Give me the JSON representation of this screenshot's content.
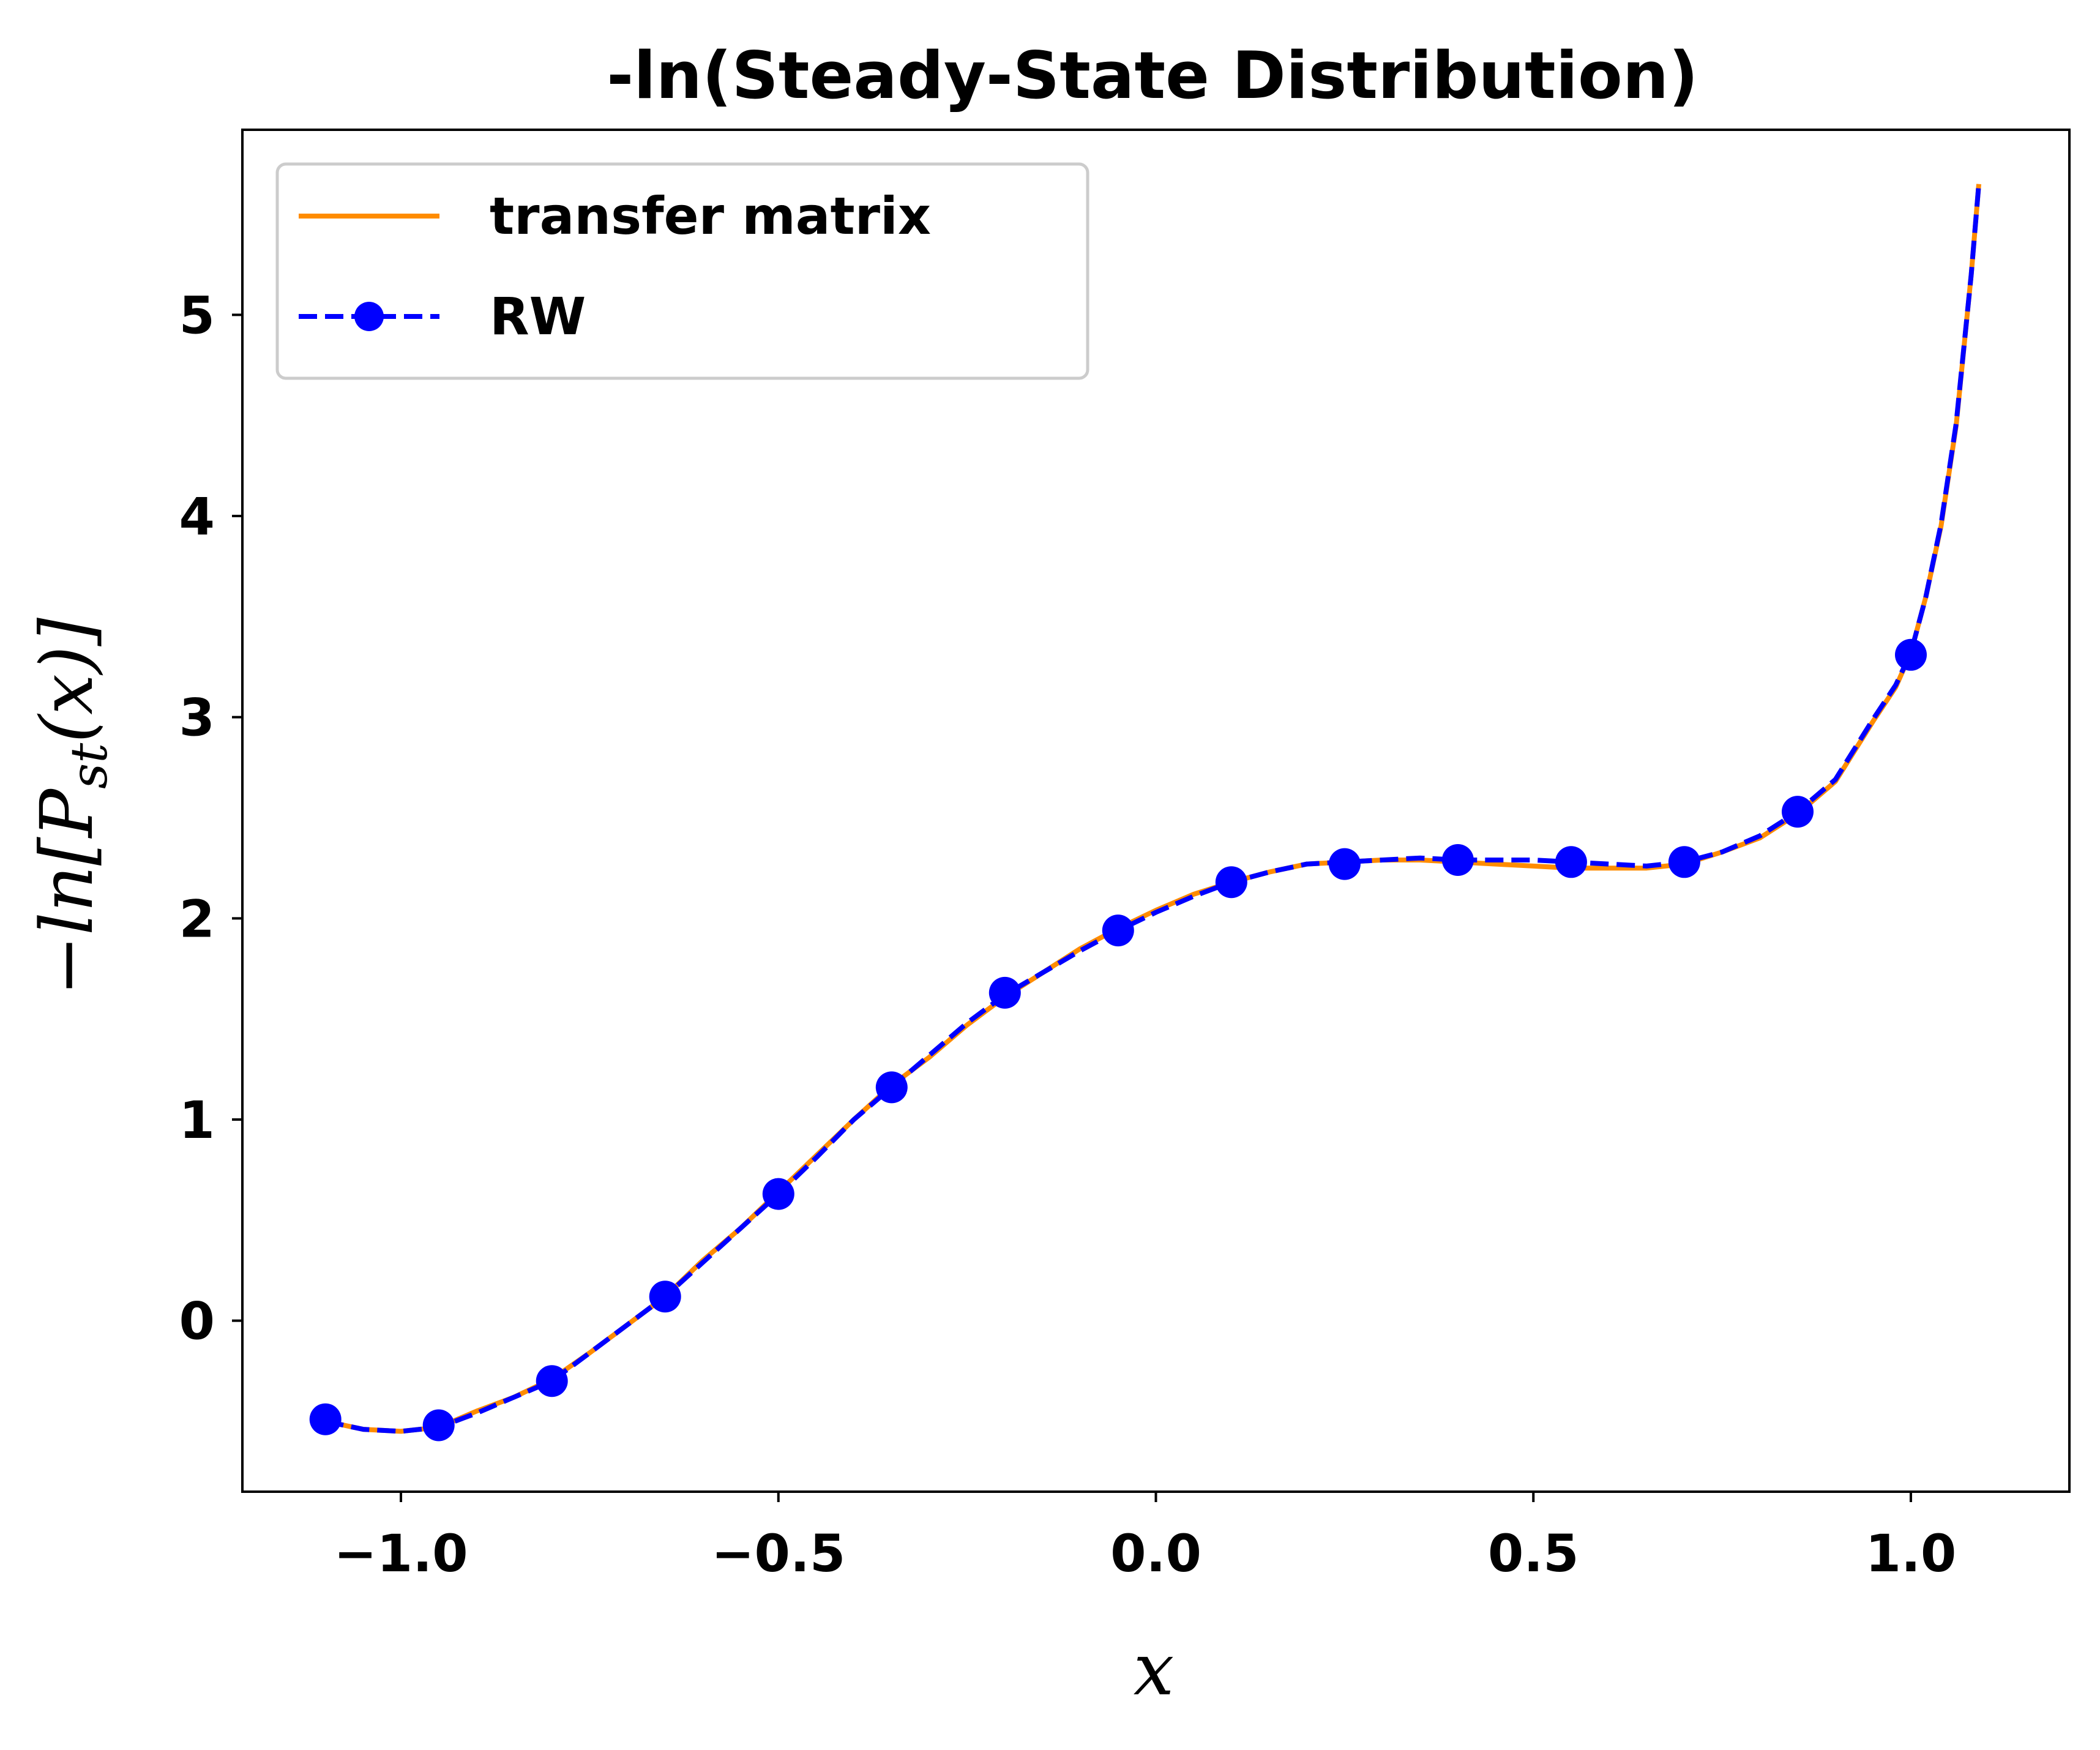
{
  "chart_data": {
    "type": "line",
    "title": "-ln(Steady-State Distribution)",
    "xlabel": "x",
    "ylabel": "−ln[P_st(x)]",
    "ylabel_parts": {
      "prefix": "−ln[",
      "var": "P",
      "sub": "st",
      "suffix": "(x)]"
    },
    "xlim": [
      -1.21,
      1.21
    ],
    "ylim": [
      -0.85,
      5.92
    ],
    "xticks": [
      -1.0,
      -0.5,
      0.0,
      0.5,
      1.0
    ],
    "xtick_labels": [
      "−1.0",
      "−0.5",
      "0.0",
      "0.5",
      "1.0"
    ],
    "yticks": [
      0,
      1,
      2,
      3,
      4,
      5
    ],
    "ytick_labels": [
      "0",
      "1",
      "2",
      "3",
      "4",
      "5"
    ],
    "grid": false,
    "legend_position": "upper-left",
    "series": [
      {
        "name": "transfer matrix",
        "color": "#ff8c00",
        "style": "solid",
        "x": [
          -1.1,
          -1.05,
          -1.0,
          -0.95,
          -0.9,
          -0.85,
          -0.8,
          -0.75,
          -0.7,
          -0.65,
          -0.6,
          -0.55,
          -0.5,
          -0.45,
          -0.4,
          -0.35,
          -0.3,
          -0.25,
          -0.2,
          -0.15,
          -0.1,
          -0.05,
          0.0,
          0.05,
          0.1,
          0.15,
          0.2,
          0.25,
          0.3,
          0.35,
          0.4,
          0.45,
          0.5,
          0.55,
          0.6,
          0.65,
          0.7,
          0.75,
          0.8,
          0.85,
          0.9,
          0.95,
          0.98,
          1.0,
          1.02,
          1.04,
          1.06,
          1.08,
          1.09
        ],
        "y": [
          -0.5,
          -0.54,
          -0.55,
          -0.53,
          -0.45,
          -0.38,
          -0.29,
          -0.16,
          -0.02,
          0.12,
          0.3,
          0.46,
          0.64,
          0.82,
          1.0,
          1.17,
          1.31,
          1.47,
          1.61,
          1.73,
          1.85,
          1.95,
          2.04,
          2.12,
          2.18,
          2.23,
          2.27,
          2.28,
          2.29,
          2.29,
          2.28,
          2.27,
          2.26,
          2.25,
          2.25,
          2.25,
          2.27,
          2.33,
          2.4,
          2.52,
          2.68,
          2.98,
          3.15,
          3.32,
          3.6,
          3.95,
          4.45,
          5.2,
          5.65
        ]
      },
      {
        "name": "RW",
        "color": "#0000ff",
        "style": "dashed",
        "marker": "circle",
        "x": [
          -1.1,
          -0.95,
          -0.8,
          -0.65,
          -0.5,
          -0.35,
          -0.2,
          -0.05,
          0.1,
          0.25,
          0.4,
          0.55,
          0.7,
          0.85,
          1.0
        ],
        "y": [
          -0.49,
          -0.52,
          -0.3,
          0.12,
          0.63,
          1.16,
          1.63,
          1.94,
          2.18,
          2.27,
          2.29,
          2.28,
          2.28,
          2.53,
          3.31
        ],
        "line_x": [
          -1.1,
          -1.05,
          -1.0,
          -0.95,
          -0.9,
          -0.85,
          -0.8,
          -0.75,
          -0.7,
          -0.65,
          -0.6,
          -0.55,
          -0.5,
          -0.45,
          -0.4,
          -0.35,
          -0.3,
          -0.25,
          -0.2,
          -0.15,
          -0.1,
          -0.05,
          0.0,
          0.05,
          0.1,
          0.15,
          0.2,
          0.25,
          0.3,
          0.35,
          0.4,
          0.45,
          0.5,
          0.55,
          0.6,
          0.65,
          0.7,
          0.75,
          0.8,
          0.85,
          0.9,
          0.95,
          0.98,
          1.0,
          1.02,
          1.04,
          1.06,
          1.08,
          1.09
        ],
        "line_y": [
          -0.5,
          -0.54,
          -0.55,
          -0.53,
          -0.46,
          -0.38,
          -0.3,
          -0.16,
          -0.02,
          0.12,
          0.29,
          0.46,
          0.63,
          0.81,
          1.0,
          1.16,
          1.32,
          1.48,
          1.62,
          1.73,
          1.84,
          1.94,
          2.03,
          2.11,
          2.18,
          2.23,
          2.27,
          2.28,
          2.29,
          2.3,
          2.29,
          2.29,
          2.29,
          2.28,
          2.27,
          2.26,
          2.28,
          2.33,
          2.41,
          2.53,
          2.69,
          2.99,
          3.16,
          3.32,
          3.6,
          3.96,
          4.46,
          5.2,
          5.65
        ]
      }
    ]
  }
}
